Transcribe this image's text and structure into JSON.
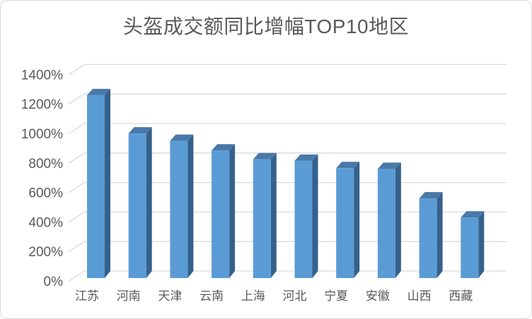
{
  "chart_data": {
    "type": "bar",
    "style": "3d-clustered-column",
    "title": "头盔成交额同比增幅TOP10地区",
    "categories": [
      "江苏",
      "河南",
      "天津",
      "云南",
      "上海",
      "河北",
      "宁夏",
      "安徽",
      "山西",
      "西藏"
    ],
    "values": [
      1240,
      980,
      930,
      865,
      805,
      795,
      745,
      740,
      540,
      410
    ],
    "unit": "%",
    "xlabel": "",
    "ylabel": "",
    "ylim": [
      0,
      1400
    ],
    "ytick_step": 200,
    "ytick_labels": [
      "0%",
      "200%",
      "400%",
      "600%",
      "800%",
      "1000%",
      "1200%",
      "1400%"
    ],
    "grid": true,
    "legend": false,
    "colors": {
      "bar_front": "#5B9BD5",
      "bar_top": "#4979A8",
      "bar_side": "#35618C",
      "gridline": "#D9D9D9",
      "text": "#595959",
      "border": "#D9D9D9",
      "background": "#FFFFFF"
    }
  }
}
